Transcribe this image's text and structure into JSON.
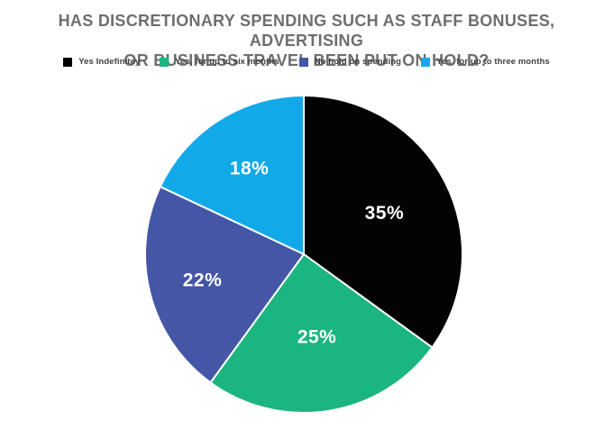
{
  "header": {
    "title_line1": "HAS DISCRETIONARY SPENDING SUCH AS STAFF BONUSES, ADVERTISING",
    "title_line2": "OR BUSINESS TRAVEL BEEN PUT ON HOLD?"
  },
  "chart_data": {
    "type": "pie",
    "title": "HAS DISCRETIONARY SPENDING SUCH AS STAFF BONUSES, ADVERTISING OR BUSINESS TRAVEL BEEN PUT ON HOLD?",
    "start_angle_deg": 0,
    "direction": "clockwise",
    "legend_position": "top",
    "data_label_color": "#ffffff",
    "title_color": "#6d6e71",
    "slices": [
      {
        "label": "Yes Indefinitey",
        "value": 35,
        "data_label": "35%",
        "color": "#030303"
      },
      {
        "label": "Yes, for up to six months",
        "value": 25,
        "data_label": "25%",
        "color": "#1ab581"
      },
      {
        "label": "No hold on spending",
        "value": 22,
        "data_label": "22%",
        "color": "#4456a5"
      },
      {
        "label": "Yes, for up to three months",
        "value": 18,
        "data_label": "18%",
        "color": "#12a9e9"
      }
    ]
  }
}
